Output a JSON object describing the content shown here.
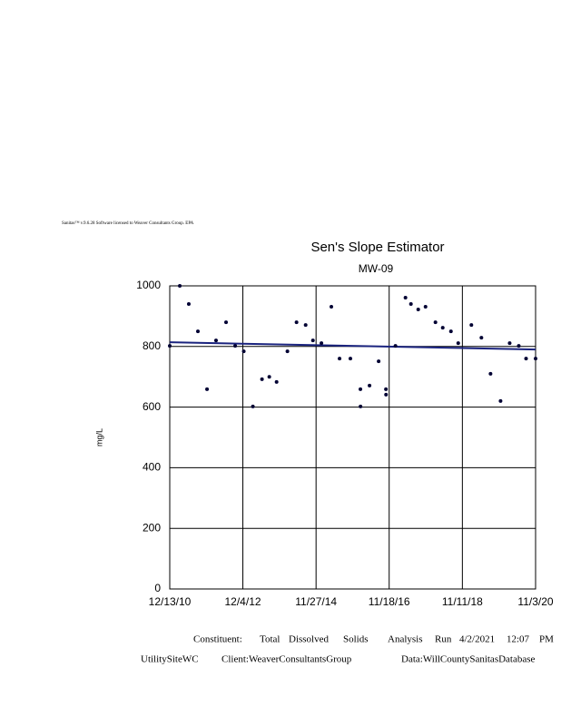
{
  "chart_data": {
    "type": "scatter",
    "header": "Sanitas™ v.9.6.28 Software licensed to Weaver Consultants Group. EPA",
    "title": "Sen's Slope Estimator",
    "subtitle": "MW-09",
    "ylabel": "mg/L",
    "color": "#000033",
    "grid": true,
    "xlim": [
      "2010-12-13",
      "2020-11-03"
    ],
    "xticks": [
      {
        "value": "2010-12-13",
        "label": "12/13/10"
      },
      {
        "value": "2012-12-04",
        "label": "12/4/12"
      },
      {
        "value": "2014-11-27",
        "label": "11/27/14"
      },
      {
        "value": "2016-11-18",
        "label": "11/18/16"
      },
      {
        "value": "2018-11-11",
        "label": "11/11/18"
      },
      {
        "value": "2020-11-03",
        "label": "11/3/20"
      }
    ],
    "ylim": [
      0,
      1000
    ],
    "yticks": [
      0,
      200,
      400,
      600,
      800,
      1000
    ],
    "x": [
      "2010-12-13",
      "2011-03-22",
      "2011-06-19",
      "2011-09-17",
      "2011-12-16",
      "2012-03-14",
      "2012-06-21",
      "2012-09-19",
      "2012-12-13",
      "2013-03-13",
      "2013-06-11",
      "2013-08-22",
      "2013-11-02",
      "2014-02-17",
      "2014-05-18",
      "2014-08-16",
      "2014-10-27",
      "2015-01-19",
      "2015-04-27",
      "2015-07-17",
      "2015-11-01",
      "2016-02-08",
      "2016-02-09",
      "2016-05-08",
      "2016-08-06",
      "2016-10-17",
      "2016-10-18",
      "2017-01-19",
      "2017-04-28",
      "2017-06-21",
      "2017-09-01",
      "2017-11-12",
      "2018-02-18",
      "2018-05-01",
      "2018-07-21",
      "2018-10-01",
      "2019-02-08",
      "2019-05-18",
      "2019-08-16",
      "2019-11-23",
      "2020-02-21",
      "2020-05-21",
      "2020-08-01",
      "2020-11-03"
    ],
    "values": [
      802,
      1000,
      940,
      850,
      659,
      820,
      880,
      802,
      784,
      602,
      692,
      700,
      683,
      784,
      880,
      871,
      820,
      811,
      931,
      760,
      760,
      659,
      602,
      671,
      751,
      659,
      641,
      802,
      961,
      940,
      922,
      931,
      880,
      862,
      850,
      811,
      871,
      829,
      710,
      620,
      811,
      802,
      760,
      760
    ],
    "trend": {
      "color": "#1a237e",
      "x": [
        "2010-12-13",
        "2020-11-03"
      ],
      "values": [
        814,
        790
      ]
    },
    "footer": {
      "line1": [
        "Constituent:",
        "Total",
        "Dissolved",
        "Solids",
        "Analysis",
        "Run",
        "4/2/2021",
        "12:07",
        "PM"
      ],
      "line2": [
        "UtilitySiteWC",
        "Client:WeaverConsultantsGroup",
        "Data:WillCountySanitasDatabase"
      ]
    }
  }
}
